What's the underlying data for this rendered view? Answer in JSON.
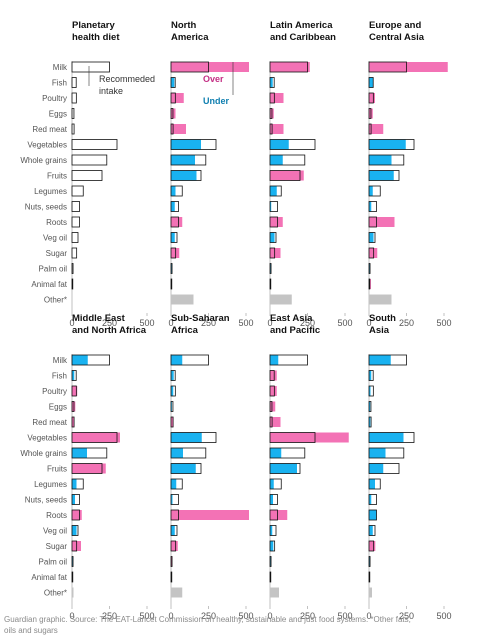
{
  "chart_data": {
    "type": "bar",
    "categories": [
      "Milk",
      "Fish",
      "Poultry",
      "Eggs",
      "Red meat",
      "Vegetables",
      "Whole grains",
      "Fruits",
      "Legumes",
      "Nuts, seeds",
      "Roots",
      "Veg oil",
      "Sugar",
      "Palm oil",
      "Animal fat",
      "Other*"
    ],
    "xlim": [
      0,
      500
    ],
    "x_ticks": [
      0,
      250,
      500
    ],
    "colors": {
      "over": "#f372b5",
      "under": "#19b2f0",
      "other": "#c4c4c4",
      "outline": "#121212"
    },
    "panels": [
      {
        "title": [
          "Planetary",
          "health diet"
        ],
        "recommended": [
          250,
          28,
          29,
          13,
          14,
          300,
          232,
          200,
          75,
          50,
          50,
          40,
          31,
          7,
          5,
          0
        ],
        "actual": null
      },
      {
        "title": [
          "North",
          "America"
        ],
        "recommended": [
          250,
          28,
          29,
          13,
          14,
          300,
          232,
          200,
          75,
          50,
          50,
          40,
          31,
          7,
          5,
          0
        ],
        "actual": [
          520,
          22,
          85,
          30,
          100,
          200,
          160,
          170,
          30,
          25,
          75,
          25,
          55,
          4,
          3,
          150
        ]
      },
      {
        "title": [
          "Latin America",
          "and Caribbean"
        ],
        "recommended": [
          250,
          28,
          29,
          13,
          14,
          300,
          232,
          200,
          75,
          50,
          50,
          40,
          31,
          7,
          5,
          0
        ],
        "actual": [
          265,
          18,
          90,
          25,
          90,
          125,
          85,
          225,
          45,
          8,
          85,
          30,
          70,
          4,
          2,
          145
        ]
      },
      {
        "title": [
          "Europe and",
          "Central Asia"
        ],
        "recommended": [
          250,
          28,
          29,
          13,
          14,
          300,
          232,
          200,
          75,
          50,
          50,
          40,
          31,
          7,
          5,
          0
        ],
        "actual": [
          525,
          28,
          40,
          25,
          95,
          245,
          150,
          165,
          25,
          15,
          170,
          30,
          55,
          3,
          13,
          150
        ]
      },
      {
        "title": [
          "Middle East",
          "and North Africa"
        ],
        "recommended": [
          250,
          28,
          29,
          13,
          14,
          300,
          232,
          200,
          75,
          50,
          50,
          40,
          31,
          7,
          5,
          0
        ],
        "actual": [
          105,
          15,
          35,
          22,
          15,
          320,
          100,
          225,
          30,
          20,
          65,
          30,
          60,
          3,
          3,
          10
        ]
      },
      {
        "title": [
          "Sub-Saharan",
          "Africa"
        ],
        "recommended": [
          250,
          28,
          29,
          13,
          14,
          300,
          232,
          200,
          75,
          50,
          50,
          40,
          31,
          7,
          5,
          0
        ],
        "actual": [
          75,
          18,
          15,
          6,
          17,
          205,
          80,
          165,
          35,
          10,
          520,
          25,
          45,
          8,
          4,
          75
        ]
      },
      {
        "title": [
          "East Asia",
          "and Pacific"
        ],
        "recommended": [
          250,
          28,
          29,
          13,
          14,
          300,
          232,
          200,
          75,
          50,
          50,
          40,
          31,
          7,
          5,
          0
        ],
        "actual": [
          55,
          45,
          45,
          35,
          70,
          525,
          75,
          180,
          25,
          20,
          115,
          15,
          22,
          5,
          3,
          60
        ]
      },
      {
        "title": [
          "South",
          "Asia"
        ],
        "recommended": [
          250,
          28,
          29,
          13,
          14,
          300,
          232,
          200,
          75,
          50,
          50,
          40,
          31,
          7,
          5,
          0
        ],
        "actual": [
          145,
          15,
          10,
          8,
          9,
          230,
          110,
          95,
          40,
          15,
          50,
          25,
          42,
          3,
          3,
          20
        ]
      }
    ],
    "annotations": {
      "recommended": [
        "Recommeded",
        "intake"
      ],
      "over": "Over",
      "under": "Under"
    }
  },
  "footer": [
    "Guardian graphic. Source: The EAT-Lancet Commission on healthy, sustainable and just food systems. *Other fats,",
    "oils and sugars"
  ]
}
